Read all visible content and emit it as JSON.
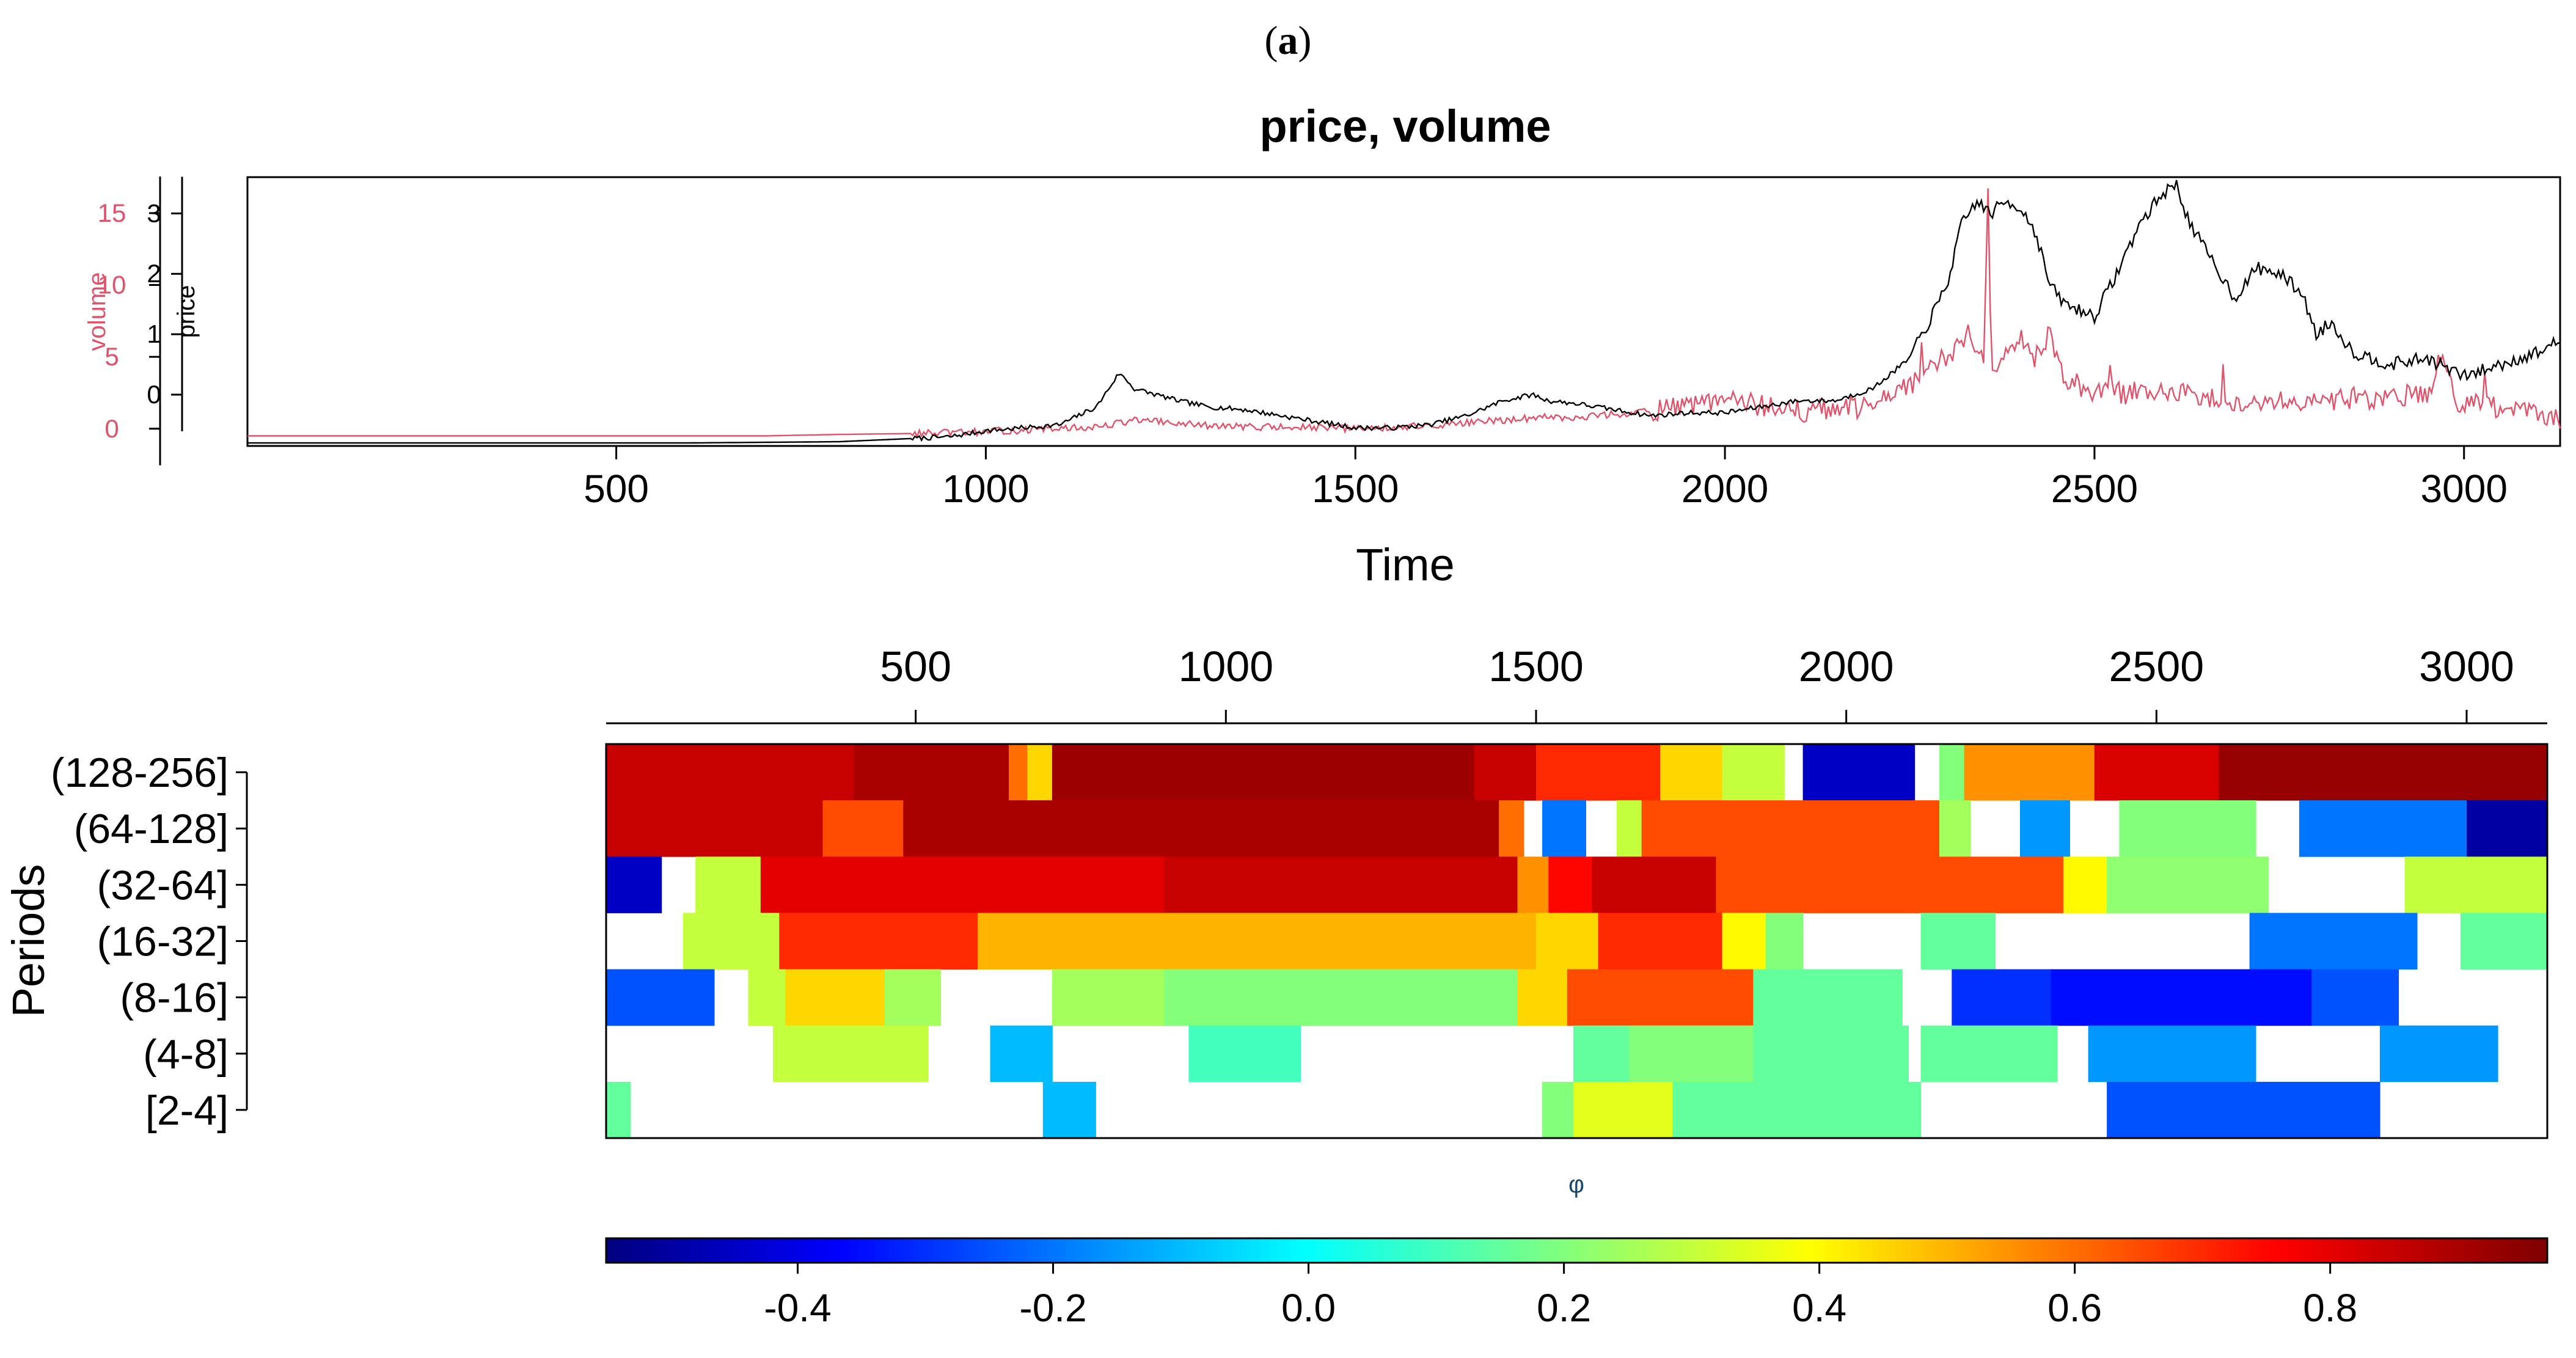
{
  "figure_label_open": "(",
  "figure_label_letter": "a",
  "figure_label_close": ")",
  "colors": {
    "price": "#000000",
    "volume": "#df536b",
    "axis": "#000000"
  },
  "chart_data": [
    {
      "type": "line",
      "title": "price, volume",
      "xlabel": "Time",
      "xlim": [
        1,
        3130
      ],
      "xticks": [
        500,
        1000,
        1500,
        2000,
        2500,
        3000
      ],
      "series": [
        {
          "name": "price",
          "ylabel": "price",
          "ylim": [
            -0.85,
            3.6
          ],
          "yticks": [
            0,
            1,
            2,
            3
          ],
          "keypoints_x": [
            1,
            300,
            600,
            800,
            950,
            1000,
            1100,
            1150,
            1180,
            1190,
            1200,
            1230,
            1260,
            1300,
            1350,
            1400,
            1450,
            1500,
            1550,
            1600,
            1650,
            1700,
            1740,
            1760,
            1800,
            1850,
            1900,
            1950,
            2000,
            2050,
            2100,
            2150,
            2200,
            2250,
            2280,
            2300,
            2320,
            2340,
            2360,
            2380,
            2400,
            2420,
            2440,
            2460,
            2500,
            2530,
            2560,
            2590,
            2610,
            2630,
            2660,
            2690,
            2720,
            2750,
            2780,
            2800,
            2820,
            2850,
            2900,
            2950,
            3000,
            3050,
            3100,
            3130
          ],
          "keypoints_y": [
            -0.8,
            -0.8,
            -0.8,
            -0.78,
            -0.7,
            -0.6,
            -0.5,
            -0.2,
            0.35,
            0.25,
            0.1,
            0.0,
            -0.1,
            -0.2,
            -0.25,
            -0.35,
            -0.45,
            -0.55,
            -0.55,
            -0.5,
            -0.35,
            -0.1,
            0.0,
            -0.1,
            -0.15,
            -0.25,
            -0.35,
            -0.3,
            -0.3,
            -0.2,
            -0.1,
            -0.1,
            0.1,
            0.6,
            1.3,
            1.8,
            2.8,
            3.2,
            3.0,
            3.2,
            3.1,
            2.7,
            1.8,
            1.5,
            1.3,
            2.0,
            2.8,
            3.3,
            3.5,
            2.8,
            2.2,
            1.6,
            2.1,
            2.0,
            1.7,
            1.0,
            1.2,
            0.7,
            0.5,
            0.6,
            0.3,
            0.5,
            0.7,
            0.9
          ]
        },
        {
          "name": "volume",
          "ylabel": "volume",
          "ylim": [
            -1.2,
            17.5
          ],
          "yticks": [
            0,
            5,
            10,
            15
          ],
          "keypoints_x": [
            1,
            700,
            800,
            950,
            1000,
            1100,
            1150,
            1200,
            1300,
            1500,
            1600,
            1700,
            1750,
            1800,
            1900,
            1950,
            2000,
            2100,
            2200,
            2250,
            2300,
            2330,
            2350,
            2356,
            2360,
            2380,
            2400,
            2420,
            2440,
            2460,
            2500,
            2600,
            2700,
            2800,
            2900,
            2950,
            2970,
            2990,
            3050,
            3130
          ],
          "keypoints_y": [
            -0.5,
            -0.5,
            -0.4,
            -0.3,
            -0.2,
            0.0,
            0.1,
            0.6,
            0.2,
            0.0,
            0.2,
            0.6,
            0.8,
            0.8,
            1.2,
            1.5,
            2.0,
            1.2,
            1.5,
            3.0,
            5.0,
            6.0,
            5.0,
            17.0,
            4.0,
            5.5,
            6.5,
            5.0,
            6.5,
            3.5,
            2.5,
            2.5,
            2.0,
            2.0,
            2.2,
            2.5,
            5.0,
            2.0,
            1.5,
            0.5
          ]
        }
      ]
    },
    {
      "type": "heatmap",
      "xlabel": "φ",
      "ylabel": "Periods",
      "xlim": [
        1,
        3130
      ],
      "xticks": [
        500,
        1000,
        1500,
        2000,
        2500,
        3000
      ],
      "colorbar_range": [
        -0.55,
        0.97
      ],
      "colorbar_ticks": [
        -0.4,
        -0.2,
        0.0,
        0.2,
        0.4,
        0.6,
        0.8
      ],
      "periods": [
        "(128-256]",
        "(64-128]",
        "(32-64]",
        "(16-32]",
        "(8-16]",
        "(4-8]",
        "[2-4]"
      ],
      "notes": "each row lists [start_time, end_time, phase_value]; null value = blank",
      "rows": [
        [
          [
            1,
            400,
            0.85
          ],
          [
            400,
            650,
            0.9
          ],
          [
            650,
            680,
            0.6
          ],
          [
            680,
            720,
            0.45
          ],
          [
            720,
            1400,
            0.92
          ],
          [
            1400,
            1500,
            0.85
          ],
          [
            1500,
            1700,
            0.7
          ],
          [
            1700,
            1800,
            0.45
          ],
          [
            1800,
            1900,
            0.3
          ],
          [
            1900,
            1930,
            null
          ],
          [
            1930,
            2110,
            -0.45
          ],
          [
            2110,
            2150,
            null
          ],
          [
            2150,
            2190,
            0.2
          ],
          [
            2190,
            2400,
            0.55
          ],
          [
            2400,
            2600,
            0.82
          ],
          [
            2600,
            3130,
            0.93
          ]
        ],
        [
          [
            1,
            350,
            0.85
          ],
          [
            350,
            480,
            0.65
          ],
          [
            480,
            1440,
            0.9
          ],
          [
            1440,
            1480,
            0.6
          ],
          [
            1480,
            1510,
            null
          ],
          [
            1510,
            1580,
            -0.2
          ],
          [
            1580,
            1630,
            null
          ],
          [
            1630,
            1670,
            0.3
          ],
          [
            1670,
            2150,
            0.65
          ],
          [
            2150,
            2200,
            0.25
          ],
          [
            2200,
            2280,
            null
          ],
          [
            2280,
            2360,
            -0.15
          ],
          [
            2360,
            2440,
            null
          ],
          [
            2440,
            2660,
            0.2
          ],
          [
            2660,
            2730,
            null
          ],
          [
            2730,
            3000,
            -0.2
          ],
          [
            3000,
            3130,
            -0.5
          ]
        ],
        [
          [
            1,
            90,
            -0.45
          ],
          [
            90,
            145,
            null
          ],
          [
            145,
            250,
            0.3
          ],
          [
            250,
            900,
            0.8
          ],
          [
            900,
            1470,
            0.85
          ],
          [
            1470,
            1520,
            0.55
          ],
          [
            1520,
            1590,
            0.75
          ],
          [
            1590,
            1790,
            0.85
          ],
          [
            1790,
            2350,
            0.65
          ],
          [
            2350,
            2420,
            0.4
          ],
          [
            2420,
            2680,
            0.22
          ],
          [
            2680,
            2900,
            null
          ],
          [
            2900,
            3130,
            0.3
          ]
        ],
        [
          [
            1,
            125,
            null
          ],
          [
            125,
            280,
            0.3
          ],
          [
            280,
            600,
            0.7
          ],
          [
            600,
            1500,
            0.5
          ],
          [
            1500,
            1600,
            0.45
          ],
          [
            1600,
            1800,
            0.7
          ],
          [
            1800,
            1870,
            0.4
          ],
          [
            1870,
            1930,
            0.2
          ],
          [
            1930,
            2120,
            null
          ],
          [
            2120,
            2240,
            0.15
          ],
          [
            2240,
            2650,
            null
          ],
          [
            2650,
            2920,
            -0.2
          ],
          [
            2920,
            2990,
            null
          ],
          [
            2990,
            3130,
            0.15
          ]
        ],
        [
          [
            1,
            175,
            -0.25
          ],
          [
            175,
            230,
            null
          ],
          [
            230,
            290,
            0.3
          ],
          [
            290,
            450,
            0.45
          ],
          [
            450,
            540,
            0.25
          ],
          [
            540,
            720,
            null
          ],
          [
            720,
            900,
            0.25
          ],
          [
            900,
            1470,
            0.2
          ],
          [
            1470,
            1550,
            0.45
          ],
          [
            1550,
            1850,
            0.65
          ],
          [
            1850,
            2090,
            0.15
          ],
          [
            2090,
            2170,
            null
          ],
          [
            2170,
            2330,
            -0.3
          ],
          [
            2330,
            2750,
            -0.35
          ],
          [
            2750,
            2890,
            -0.25
          ],
          [
            2890,
            3130,
            null
          ]
        ],
        [
          [
            1,
            270,
            null
          ],
          [
            270,
            520,
            0.3
          ],
          [
            520,
            620,
            null
          ],
          [
            620,
            720,
            -0.1
          ],
          [
            720,
            940,
            null
          ],
          [
            940,
            1120,
            0.1
          ],
          [
            1120,
            1560,
            null
          ],
          [
            1560,
            1650,
            0.15
          ],
          [
            1650,
            1850,
            0.2
          ],
          [
            1850,
            2100,
            0.15
          ],
          [
            2100,
            2120,
            null
          ],
          [
            2120,
            2340,
            0.15
          ],
          [
            2340,
            2390,
            null
          ],
          [
            2390,
            2660,
            -0.15
          ],
          [
            2660,
            2860,
            null
          ],
          [
            2860,
            3050,
            -0.15
          ],
          [
            3050,
            3130,
            null
          ]
        ],
        [
          [
            1,
            40,
            0.15
          ],
          [
            40,
            705,
            null
          ],
          [
            705,
            790,
            -0.1
          ],
          [
            790,
            1510,
            null
          ],
          [
            1510,
            1560,
            0.2
          ],
          [
            1560,
            1720,
            0.35
          ],
          [
            1720,
            2120,
            0.15
          ],
          [
            2120,
            2420,
            null
          ],
          [
            2420,
            2860,
            -0.25
          ],
          [
            2860,
            3130,
            null
          ]
        ]
      ]
    }
  ]
}
